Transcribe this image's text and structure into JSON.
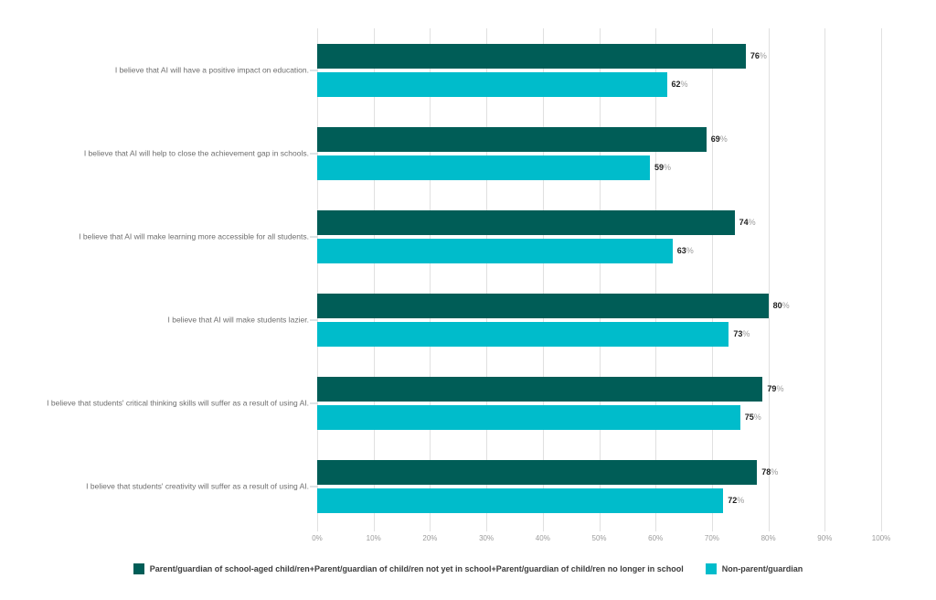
{
  "chart_data": {
    "type": "bar",
    "orientation": "horizontal",
    "title": "",
    "categories": [
      "I believe that AI will have a positive impact on education.",
      "I believe that AI will help to close the achievement gap in schools.",
      "I believe that AI will make learning more accessible for all students.",
      "I believe that AI will make students lazier.",
      "I believe that students' critical thinking skills will suffer as a result of using AI.",
      "I believe that students' creativity will suffer as a result of using AI."
    ],
    "series": [
      {
        "name": "Parent/guardian of school-aged child/ren+Parent/guardian of child/ren not yet in school+Parent/guardian of child/ren no longer in school",
        "color": "#005D57",
        "values": [
          76,
          69,
          74,
          80,
          79,
          78
        ]
      },
      {
        "name": "Non-parent/guardian",
        "color": "#00BCCB",
        "values": [
          62,
          59,
          63,
          73,
          75,
          72
        ]
      }
    ],
    "value_suffix": "%",
    "x_ticks": [
      "0%",
      "10%",
      "20%",
      "30%",
      "40%",
      "50%",
      "60%",
      "70%",
      "80%",
      "90%",
      "100%"
    ],
    "xlim": [
      0,
      100
    ],
    "grid": true,
    "legend_position": "bottom"
  },
  "colors": {
    "bar_parent": "#005D57",
    "bar_nonparent": "#00BCCB",
    "gridline": "#E0E0E0",
    "category_label": "#6E6E6E",
    "tick_label": "#9B9B9B",
    "value_number": "#1F1F1F",
    "value_suffix": "#9B9B9B",
    "legend_text": "#3C3C3C",
    "background": "#FFFFFF"
  }
}
